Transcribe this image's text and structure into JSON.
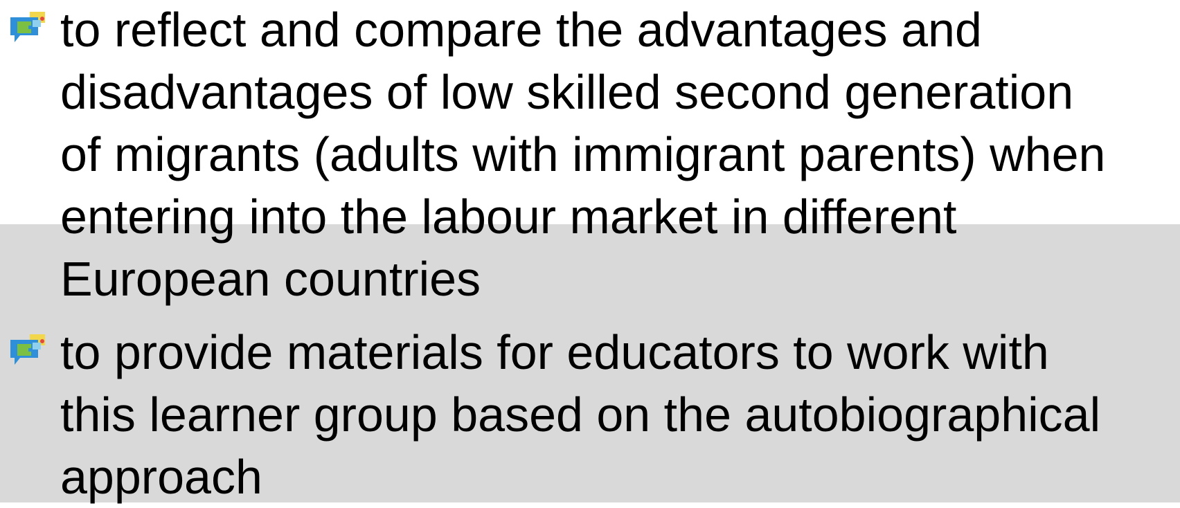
{
  "bullets": [
    {
      "lines": [
        "to reflect and compare the advantages and",
        "disadvantages of low skilled second generation",
        "of migrants (adults with immigrant parents) when",
        "entering into the labour market in different",
        "European countries"
      ]
    },
    {
      "lines": [
        "to provide materials for educators to work with",
        "this learner group based on the autobiographical",
        "approach"
      ]
    }
  ]
}
